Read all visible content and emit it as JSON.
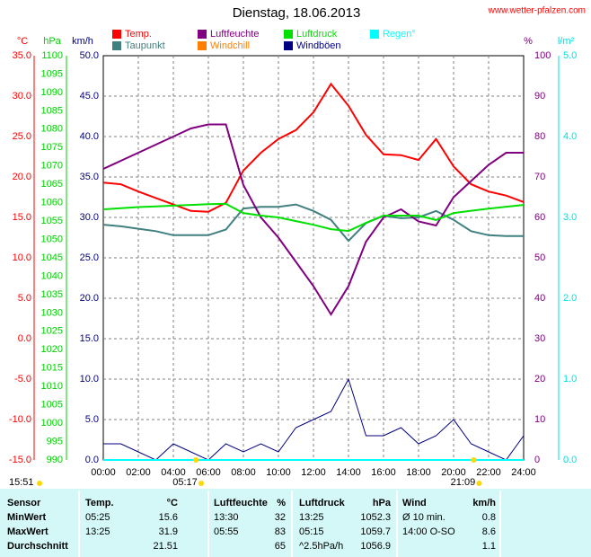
{
  "chart_data": {
    "type": "line",
    "title": "Dienstag, 18.06.2013",
    "source": "www.wetter-pfalzen.com",
    "x": [
      0,
      1,
      2,
      3,
      4,
      5,
      6,
      7,
      8,
      9,
      10,
      11,
      12,
      13,
      14,
      15,
      16,
      17,
      18,
      19,
      20,
      21,
      22,
      23,
      24
    ],
    "xlim": [
      0,
      24
    ],
    "xticks": [
      {
        "value": 0,
        "label": "00:00"
      },
      {
        "value": 2,
        "label": "02:00"
      },
      {
        "value": 4,
        "label": "04:00"
      },
      {
        "value": 6,
        "label": "06:00"
      },
      {
        "value": 8,
        "label": "08:00"
      },
      {
        "value": 10,
        "label": "10:00"
      },
      {
        "value": 12,
        "label": "12:00"
      },
      {
        "value": 14,
        "label": "14:00"
      },
      {
        "value": 16,
        "label": "16:00"
      },
      {
        "value": 18,
        "label": "18:00"
      },
      {
        "value": 20,
        "label": "20:00"
      },
      {
        "value": 22,
        "label": "22:00"
      },
      {
        "value": 24,
        "label": "24:00"
      }
    ],
    "grid": true,
    "axes": [
      {
        "label": "°C",
        "color": "#ff0000",
        "side": "left",
        "lim": [
          -15,
          35
        ],
        "ticks": [
          {
            "value": 35,
            "label": "35.0"
          },
          {
            "value": 30,
            "label": "30.0"
          },
          {
            "value": 25,
            "label": "25.0"
          },
          {
            "value": 20,
            "label": "20.0"
          },
          {
            "value": 15,
            "label": "15.0"
          },
          {
            "value": 10,
            "label": "10.0"
          },
          {
            "value": 5,
            "label": "5.0"
          },
          {
            "value": 0,
            "label": "0.0"
          },
          {
            "value": -5,
            "label": "-5.0"
          },
          {
            "value": -10,
            "label": "-10.0"
          },
          {
            "value": -15,
            "label": "-15.0"
          }
        ]
      },
      {
        "label": "hPa",
        "color": "#00d000",
        "side": "left",
        "lim": [
          990,
          1100
        ],
        "ticks": [
          1100,
          1095,
          1090,
          1085,
          1080,
          1075,
          1070,
          1065,
          1060,
          1055,
          1050,
          1045,
          1040,
          1035,
          1030,
          1025,
          1020,
          1015,
          1010,
          1005,
          1000,
          995,
          990
        ]
      },
      {
        "label": "km/h",
        "color": "#000080",
        "side": "left",
        "lim": [
          0,
          50
        ],
        "ticks": [
          {
            "value": 50,
            "label": "50.0"
          },
          {
            "value": 45,
            "label": "45.0"
          },
          {
            "value": 40,
            "label": "40.0"
          },
          {
            "value": 35,
            "label": "35.0"
          },
          {
            "value": 30,
            "label": "30.0"
          },
          {
            "value": 25,
            "label": "25.0"
          },
          {
            "value": 20,
            "label": "20.0"
          },
          {
            "value": 15,
            "label": "15.0"
          },
          {
            "value": 10,
            "label": "10.0"
          },
          {
            "value": 5,
            "label": "5.0"
          },
          {
            "value": 0,
            "label": "0.0"
          }
        ]
      },
      {
        "label": "%",
        "color": "#800080",
        "side": "right",
        "lim": [
          0,
          100
        ],
        "ticks": [
          100,
          90,
          80,
          70,
          60,
          50,
          40,
          30,
          20,
          10,
          0
        ]
      },
      {
        "label": "l/m²",
        "color": "#00e0e0",
        "side": "right",
        "lim": [
          0,
          5
        ],
        "ticks": [
          {
            "value": 5,
            "label": "5.0"
          },
          {
            "value": 4,
            "label": "4.0"
          },
          {
            "value": 3,
            "label": "3.0"
          },
          {
            "value": 2,
            "label": "2.0"
          },
          {
            "value": 1,
            "label": "1.0"
          },
          {
            "value": 0,
            "label": "0.0"
          }
        ]
      }
    ],
    "series": [
      {
        "name": "Temp.",
        "color": "#ff0000",
        "axis": 0,
        "values": [
          19.3,
          19.1,
          18.2,
          17.4,
          16.6,
          15.8,
          15.7,
          16.8,
          20.8,
          23.0,
          24.7,
          25.8,
          28.0,
          31.5,
          28.8,
          25.2,
          22.8,
          22.7,
          22.1,
          24.7,
          21.3,
          19.1,
          18.2,
          17.7,
          16.9
        ]
      },
      {
        "name": "Taupunkt",
        "color": "#408080",
        "axis": 0,
        "values": [
          14.1,
          13.9,
          13.6,
          13.3,
          12.8,
          12.8,
          12.8,
          13.5,
          16.1,
          16.3,
          16.3,
          16.6,
          15.8,
          14.7,
          12.1,
          14.3,
          15.2,
          14.9,
          15.0,
          15.8,
          14.7,
          13.3,
          12.8,
          12.7,
          12.7
        ]
      },
      {
        "name": "Luftfeuchte",
        "color": "#800080",
        "axis": 3,
        "values": [
          72,
          74,
          76,
          78,
          80,
          82,
          83,
          83,
          68,
          60,
          55,
          49,
          43,
          36,
          43,
          54,
          60,
          62,
          59,
          58,
          65,
          69,
          73,
          76,
          76
        ]
      },
      {
        "name": "Windchill",
        "color": "#ff8000",
        "axis": 0,
        "values": [
          null,
          null,
          null,
          null,
          null,
          null,
          null,
          null,
          null,
          null,
          null,
          null,
          null,
          null,
          null,
          null,
          null,
          null,
          null,
          null,
          null,
          null,
          null,
          null,
          null
        ]
      },
      {
        "name": "Luftdruck",
        "color": "#00e000",
        "axis": 1,
        "values": [
          1058.2,
          1058.5,
          1058.8,
          1059.0,
          1059.2,
          1059.4,
          1059.6,
          1059.7,
          1057.2,
          1056.5,
          1056.0,
          1055.0,
          1054.0,
          1052.8,
          1052.3,
          1054.5,
          1056.5,
          1056.5,
          1056.5,
          1055.3,
          1057.2,
          1057.8,
          1058.4,
          1058.9,
          1059.4
        ]
      },
      {
        "name": "Windböen",
        "color": "#000080",
        "axis": 2,
        "values": [
          2,
          2,
          1,
          0,
          2,
          1,
          0,
          2,
          1,
          2,
          1,
          4,
          5,
          6,
          10,
          3,
          3,
          4,
          2,
          3,
          5,
          2,
          1,
          0,
          3
        ]
      },
      {
        "name": "Regen°",
        "color": "#00ffff",
        "axis": 4,
        "values": [
          0,
          0,
          0,
          0,
          0,
          0,
          0,
          0,
          0,
          0,
          0,
          0,
          0,
          0,
          0,
          0,
          0,
          0,
          0,
          0,
          0,
          0,
          0,
          0,
          0
        ]
      }
    ],
    "daylength": "15:51",
    "sunrise": {
      "label": "05:17",
      "x": 5.283
    },
    "sunset": {
      "label": "21:09",
      "x": 21.15
    }
  },
  "table": {
    "header": [
      "Sensor",
      "Temp.",
      "°C",
      "Luftfeuchte",
      "%",
      "Luftdruck",
      "hPa",
      "Wind",
      "km/h"
    ],
    "rows": [
      [
        "MinWert",
        "05:25",
        "15.6",
        "13:30",
        "32",
        "13:25",
        "1052.3",
        "Ø 10 min.",
        "0.8"
      ],
      [
        "MaxWert",
        "13:25",
        "31.9",
        "05:55",
        "83",
        "05:15",
        "1059.7",
        "14:00    O-SO",
        "8.6"
      ],
      [
        "Durchschnitt",
        null,
        "21.51",
        null,
        "65",
        "^2.5hPa/h",
        "1056.9",
        null,
        "1.1"
      ]
    ]
  }
}
